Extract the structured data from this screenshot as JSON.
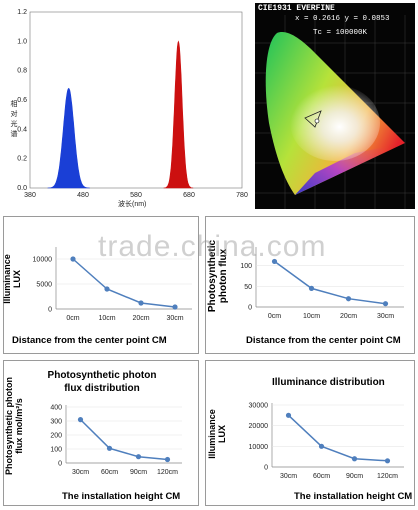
{
  "spectrum": {
    "ylabel": "相对光谱",
    "xlabel": "波长(nm)",
    "yticks": [
      "1.2",
      "1.0",
      "0.8",
      "0.6",
      "0.4",
      "0.2",
      "0.0"
    ],
    "xticks": [
      "380",
      "480",
      "580",
      "680",
      "780"
    ],
    "xlim": [
      380,
      780
    ],
    "ylim": [
      0,
      1.2
    ],
    "peaks": [
      {
        "color": "#1a3fd6",
        "center": 453,
        "height": 0.68
      },
      {
        "color": "#cc1010",
        "center": 660,
        "height": 1.0
      }
    ]
  },
  "cie": {
    "title": "CIE1931 EVERFINE",
    "coords": "x = 0.2616 y = 0.0853",
    "tc": "Tc = 100000K"
  },
  "watermark": "trade.china.com",
  "charts": [
    {
      "key": "tl",
      "title": "",
      "ylabel": "Illuminance LUX",
      "xlabel": "Distance from the center point  CM",
      "categories": [
        "0cm",
        "10cm",
        "20cm",
        "30cm"
      ],
      "yticks": [
        "10000",
        "5000",
        "0"
      ],
      "values": [
        10000,
        4000,
        1200,
        400
      ],
      "ylim": [
        0,
        12000
      ]
    },
    {
      "key": "tr",
      "title": "",
      "ylabel": "Photosynthetic photon flux",
      "xlabel": "Distance from the center point  CM",
      "categories": [
        "0cm",
        "10cm",
        "20cm",
        "30cm"
      ],
      "yticks": [
        "100",
        "50",
        "0"
      ],
      "values": [
        110,
        45,
        20,
        8
      ],
      "ylim": [
        0,
        140
      ]
    },
    {
      "key": "bl",
      "title": "Photosynthetic photon flux distribution",
      "ylabel": "Photosynthetic photon flux mol/m²/s",
      "xlabel": "The installation height CM",
      "categories": [
        "30cm",
        "60cm",
        "90cm",
        "120cm"
      ],
      "yticks": [
        "400",
        "300",
        "200",
        "100",
        "0"
      ],
      "values": [
        310,
        105,
        45,
        25
      ],
      "ylim": [
        0,
        400
      ]
    },
    {
      "key": "br",
      "title": "Illuminance distribution",
      "ylabel": "Illuminance LUX",
      "xlabel": "The installation height CM",
      "categories": [
        "30cm",
        "60cm",
        "90cm",
        "120cm"
      ],
      "yticks": [
        "30000",
        "20000",
        "10000",
        "0"
      ],
      "values": [
        25000,
        10000,
        4000,
        3000
      ],
      "ylim": [
        0,
        30000
      ]
    }
  ],
  "chart_data": [
    {
      "type": "area",
      "xlabel": "波长(nm)",
      "ylabel": "相对光谱",
      "xlim": [
        380,
        780
      ],
      "ylim": [
        0,
        1.2
      ],
      "series": [
        {
          "peak_x": 453,
          "peak_y": 0.68
        },
        {
          "peak_x": 660,
          "peak_y": 1.0
        }
      ]
    },
    {
      "type": "line",
      "categories": [
        "0cm",
        "10cm",
        "20cm",
        "30cm"
      ],
      "values": [
        10000,
        4000,
        1200,
        400
      ],
      "xlabel": "Distance from the center point  CM",
      "ylabel": "Illuminance LUX"
    },
    {
      "type": "line",
      "categories": [
        "0cm",
        "10cm",
        "20cm",
        "30cm"
      ],
      "values": [
        110,
        45,
        20,
        8
      ],
      "xlabel": "Distance from the center point  CM",
      "ylabel": "Photosynthetic photon flux"
    },
    {
      "type": "line",
      "title": "Photosynthetic photon flux distribution",
      "categories": [
        "30cm",
        "60cm",
        "90cm",
        "120cm"
      ],
      "values": [
        310,
        105,
        45,
        25
      ],
      "xlabel": "The installation height CM",
      "ylabel": "Photosynthetic photon flux mol/m²/s",
      "ylim": [
        0,
        400
      ]
    },
    {
      "type": "line",
      "title": "Illuminance distribution",
      "categories": [
        "30cm",
        "60cm",
        "90cm",
        "120cm"
      ],
      "values": [
        25000,
        10000,
        4000,
        3000
      ],
      "xlabel": "The installation height CM",
      "ylabel": "Illuminance LUX",
      "ylim": [
        0,
        30000
      ]
    }
  ]
}
